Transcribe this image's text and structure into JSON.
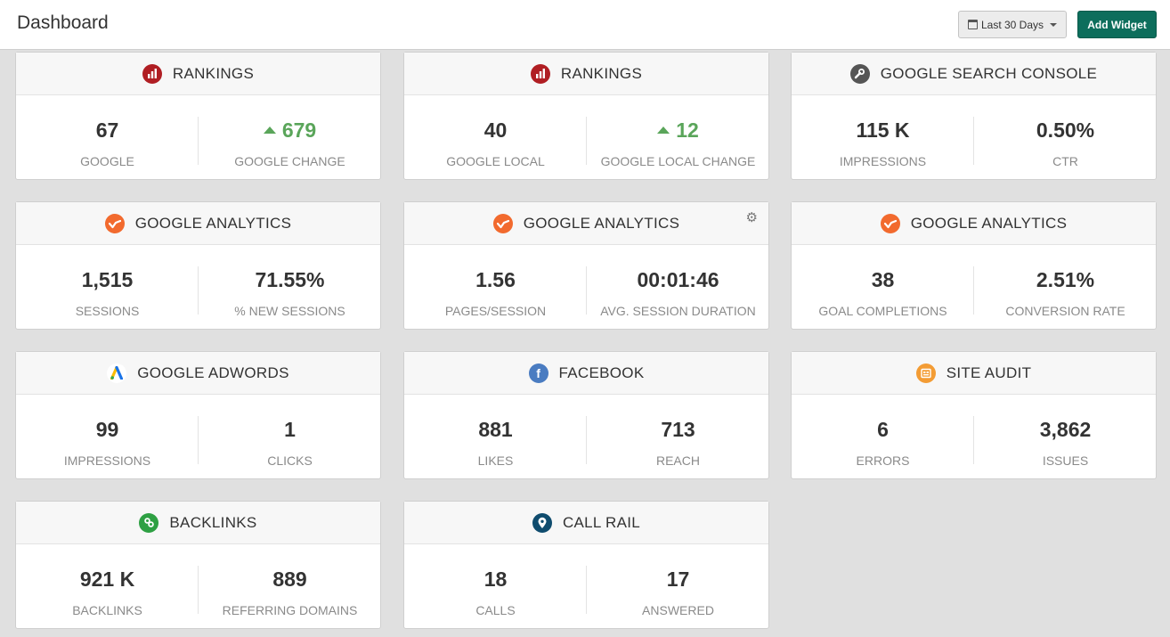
{
  "header": {
    "title": "Dashboard",
    "date_range_label": "Last 30 Days",
    "add_widget_label": "Add Widget"
  },
  "widgets": [
    {
      "title": "RANKINGS",
      "icon": "rankings-icon",
      "color": "#b01e23",
      "metrics": [
        {
          "value": "67",
          "label": "GOOGLE"
        },
        {
          "value": "679",
          "label": "GOOGLE CHANGE",
          "trend": "up"
        }
      ]
    },
    {
      "title": "RANKINGS",
      "icon": "rankings-icon",
      "color": "#b01e23",
      "metrics": [
        {
          "value": "40",
          "label": "GOOGLE LOCAL"
        },
        {
          "value": "12",
          "label": "GOOGLE LOCAL CHANGE",
          "trend": "up"
        }
      ]
    },
    {
      "title": "GOOGLE SEARCH CONSOLE",
      "icon": "wrench-icon",
      "color": "#555555",
      "metrics": [
        {
          "value": "115 K",
          "label": "IMPRESSIONS"
        },
        {
          "value": "0.50%",
          "label": "CTR"
        }
      ]
    },
    {
      "title": "GOOGLE ANALYTICS",
      "icon": "analytics-icon",
      "color": "#f26a2e",
      "metrics": [
        {
          "value": "1,515",
          "label": "SESSIONS"
        },
        {
          "value": "71.55%",
          "label": "% NEW SESSIONS"
        }
      ]
    },
    {
      "title": "GOOGLE ANALYTICS",
      "icon": "analytics-icon",
      "color": "#f26a2e",
      "settings": true,
      "metrics": [
        {
          "value": "1.56",
          "label": "PAGES/SESSION"
        },
        {
          "value": "00:01:46",
          "label": "AVG. SESSION DURATION"
        }
      ]
    },
    {
      "title": "GOOGLE ANALYTICS",
      "icon": "analytics-icon",
      "color": "#f26a2e",
      "metrics": [
        {
          "value": "38",
          "label": "GOAL COMPLETIONS"
        },
        {
          "value": "2.51%",
          "label": "CONVERSION RATE"
        }
      ]
    },
    {
      "title": "GOOGLE ADWORDS",
      "icon": "adwords-icon",
      "color": "#4285f4",
      "metrics": [
        {
          "value": "99",
          "label": "IMPRESSIONS"
        },
        {
          "value": "1",
          "label": "CLICKS"
        }
      ]
    },
    {
      "title": "FACEBOOK",
      "icon": "facebook-icon",
      "color": "#4a7cc1",
      "metrics": [
        {
          "value": "881",
          "label": "LIKES"
        },
        {
          "value": "713",
          "label": "REACH"
        }
      ]
    },
    {
      "title": "SITE AUDIT",
      "icon": "site-audit-icon",
      "color": "#f39c34",
      "metrics": [
        {
          "value": "6",
          "label": "ERRORS"
        },
        {
          "value": "3,862",
          "label": "ISSUES"
        }
      ]
    },
    {
      "title": "BACKLINKS",
      "icon": "backlinks-icon",
      "color": "#2ea043",
      "metrics": [
        {
          "value": "921 K",
          "label": "BACKLINKS"
        },
        {
          "value": "889",
          "label": "REFERRING DOMAINS"
        }
      ]
    },
    {
      "title": "CALL RAIL",
      "icon": "call-rail-icon",
      "color": "#0f4c6e",
      "metrics": [
        {
          "value": "18",
          "label": "CALLS"
        },
        {
          "value": "17",
          "label": "ANSWERED"
        }
      ]
    }
  ]
}
